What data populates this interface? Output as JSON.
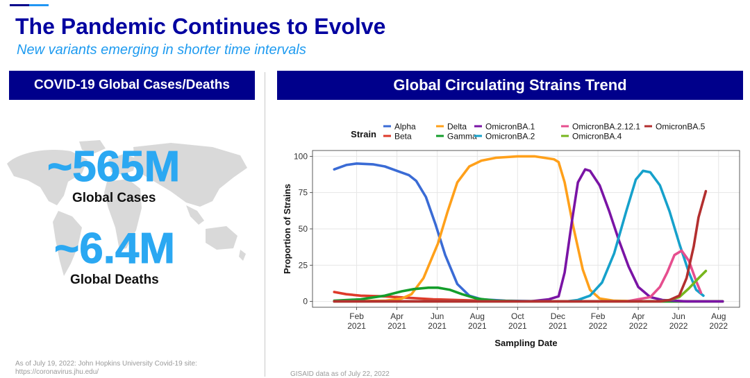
{
  "page": {
    "title": "The Pandemic Continues to Evolve",
    "subtitle": "New variants emerging in shorter time intervals"
  },
  "left_panel": {
    "header": "COVID-19 Global Cases/Deaths",
    "cases_value": "~565M",
    "cases_label": "Global Cases",
    "deaths_value": "~6.4M",
    "deaths_label": "Global Deaths",
    "source": "As of July 19, 2022: John Hopkins University  Covid-19 site: https://coronavirus.jhu.edu/"
  },
  "right_panel": {
    "header": "Global Circulating Strains Trend",
    "source": "GISAID data as of July 22, 2022"
  },
  "colors": {
    "brand_navy": "#00008B",
    "accent_blue": "#2196F3",
    "stat_blue": "#2BA8F2"
  },
  "chart_data": {
    "type": "line",
    "title": "",
    "xlabel": "Sampling Date",
    "ylabel": "Proportion of Strains",
    "legend_title": "Strain",
    "legend_position": "top",
    "grid": true,
    "xlim": [
      2020.9,
      2022.67
    ],
    "ylim": [
      -4,
      104
    ],
    "x_ticks": [
      {
        "x": 2021.083,
        "month": "Feb",
        "year": "2021"
      },
      {
        "x": 2021.25,
        "month": "Apr",
        "year": "2021"
      },
      {
        "x": 2021.417,
        "month": "Jun",
        "year": "2021"
      },
      {
        "x": 2021.583,
        "month": "Aug",
        "year": "2021"
      },
      {
        "x": 2021.75,
        "month": "Oct",
        "year": "2021"
      },
      {
        "x": 2021.917,
        "month": "Dec",
        "year": "2021"
      },
      {
        "x": 2022.083,
        "month": "Feb",
        "year": "2022"
      },
      {
        "x": 2022.25,
        "month": "Apr",
        "year": "2022"
      },
      {
        "x": 2022.417,
        "month": "Jun",
        "year": "2022"
      },
      {
        "x": 2022.583,
        "month": "Aug",
        "year": "2022"
      }
    ],
    "y_ticks": [
      0,
      25,
      50,
      75,
      100
    ],
    "series": [
      {
        "name": "Alpha",
        "color": "#3A6BD5",
        "points": [
          [
            2020.99,
            91
          ],
          [
            2021.04,
            94
          ],
          [
            2021.083,
            95
          ],
          [
            2021.15,
            94.5
          ],
          [
            2021.2,
            93
          ],
          [
            2021.25,
            90
          ],
          [
            2021.3,
            87
          ],
          [
            2021.33,
            83
          ],
          [
            2021.37,
            72
          ],
          [
            2021.41,
            53
          ],
          [
            2021.45,
            32
          ],
          [
            2021.5,
            12
          ],
          [
            2021.55,
            4
          ],
          [
            2021.6,
            1.5
          ],
          [
            2021.7,
            0.5
          ],
          [
            2021.9,
            0
          ],
          [
            2022.6,
            0
          ]
        ]
      },
      {
        "name": "Beta",
        "color": "#DE3A2A",
        "points": [
          [
            2020.99,
            6.5
          ],
          [
            2021.04,
            5
          ],
          [
            2021.1,
            4
          ],
          [
            2021.2,
            3.5
          ],
          [
            2021.3,
            2.5
          ],
          [
            2021.4,
            1.5
          ],
          [
            2021.5,
            1
          ],
          [
            2021.6,
            0.5
          ],
          [
            2021.8,
            0
          ],
          [
            2022.6,
            0
          ]
        ]
      },
      {
        "name": "Delta",
        "color": "#FFA01A",
        "points": [
          [
            2020.99,
            0
          ],
          [
            2021.2,
            0.5
          ],
          [
            2021.27,
            2
          ],
          [
            2021.31,
            5
          ],
          [
            2021.36,
            16
          ],
          [
            2021.42,
            40
          ],
          [
            2021.46,
            62
          ],
          [
            2021.5,
            82
          ],
          [
            2021.55,
            93
          ],
          [
            2021.6,
            97
          ],
          [
            2021.66,
            99
          ],
          [
            2021.75,
            100
          ],
          [
            2021.82,
            100
          ],
          [
            2021.86,
            99
          ],
          [
            2021.9,
            98
          ],
          [
            2021.92,
            96
          ],
          [
            2021.945,
            82
          ],
          [
            2021.98,
            52
          ],
          [
            2022.02,
            22
          ],
          [
            2022.05,
            8
          ],
          [
            2022.09,
            2
          ],
          [
            2022.15,
            0.5
          ],
          [
            2022.3,
            0
          ],
          [
            2022.6,
            0
          ]
        ]
      },
      {
        "name": "Gamma",
        "color": "#149E2B",
        "points": [
          [
            2020.99,
            0.5
          ],
          [
            2021.1,
            1.5
          ],
          [
            2021.2,
            4
          ],
          [
            2021.27,
            7
          ],
          [
            2021.32,
            8.5
          ],
          [
            2021.38,
            9.5
          ],
          [
            2021.42,
            9.5
          ],
          [
            2021.47,
            8
          ],
          [
            2021.52,
            5
          ],
          [
            2021.58,
            2
          ],
          [
            2021.66,
            0.5
          ],
          [
            2021.8,
            0
          ],
          [
            2022.6,
            0
          ]
        ]
      },
      {
        "name": "OmicronBA.1",
        "color": "#7A14A5",
        "points": [
          [
            2020.99,
            0
          ],
          [
            2021.8,
            0
          ],
          [
            2021.88,
            1.5
          ],
          [
            2021.92,
            3.5
          ],
          [
            2021.945,
            20
          ],
          [
            2021.975,
            55
          ],
          [
            2022.0,
            82
          ],
          [
            2022.03,
            91
          ],
          [
            2022.05,
            90
          ],
          [
            2022.09,
            80
          ],
          [
            2022.13,
            62
          ],
          [
            2022.17,
            42
          ],
          [
            2022.21,
            24
          ],
          [
            2022.25,
            10
          ],
          [
            2022.3,
            3
          ],
          [
            2022.35,
            1
          ],
          [
            2022.45,
            0
          ],
          [
            2022.6,
            0
          ]
        ]
      },
      {
        "name": "OmicronBA.2",
        "color": "#16A1CB",
        "points": [
          [
            2020.99,
            0
          ],
          [
            2021.95,
            0
          ],
          [
            2022.0,
            1
          ],
          [
            2022.05,
            4
          ],
          [
            2022.1,
            13
          ],
          [
            2022.15,
            33
          ],
          [
            2022.2,
            62
          ],
          [
            2022.24,
            84
          ],
          [
            2022.27,
            90
          ],
          [
            2022.3,
            89
          ],
          [
            2022.34,
            80
          ],
          [
            2022.38,
            62
          ],
          [
            2022.42,
            40
          ],
          [
            2022.46,
            20
          ],
          [
            2022.49,
            8
          ],
          [
            2022.52,
            4
          ]
        ]
      },
      {
        "name": "OmicronBA.2.12.1",
        "color": "#E64E8E",
        "points": [
          [
            2020.99,
            0
          ],
          [
            2022.2,
            0
          ],
          [
            2022.3,
            3
          ],
          [
            2022.34,
            10
          ],
          [
            2022.37,
            20
          ],
          [
            2022.4,
            32
          ],
          [
            2022.43,
            35
          ],
          [
            2022.46,
            28
          ],
          [
            2022.49,
            14
          ],
          [
            2022.51,
            6
          ]
        ]
      },
      {
        "name": "OmicronBA.4",
        "color": "#77B61D",
        "points": [
          [
            2020.99,
            0
          ],
          [
            2022.33,
            0
          ],
          [
            2022.38,
            1
          ],
          [
            2022.42,
            3
          ],
          [
            2022.46,
            9
          ],
          [
            2022.5,
            16
          ],
          [
            2022.53,
            21
          ]
        ]
      },
      {
        "name": "OmicronBA.5",
        "color": "#B32F2F",
        "points": [
          [
            2020.99,
            0
          ],
          [
            2022.34,
            0
          ],
          [
            2022.38,
            1
          ],
          [
            2022.42,
            4
          ],
          [
            2022.45,
            16
          ],
          [
            2022.48,
            38
          ],
          [
            2022.5,
            58
          ],
          [
            2022.53,
            76
          ]
        ]
      }
    ]
  }
}
